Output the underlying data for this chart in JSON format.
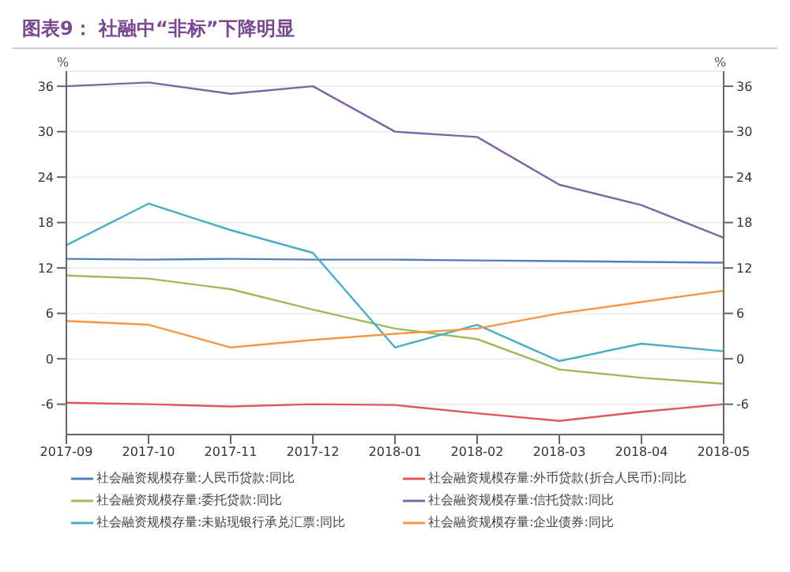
{
  "chart_data": {
    "type": "line",
    "title": "图表9：  社融中“非标”下降明显",
    "ylabel": "%",
    "y2label": "%",
    "categories": [
      "2017-09",
      "2017-10",
      "2017-11",
      "2017-12",
      "2018-01",
      "2018-02",
      "2018-03",
      "2018-04",
      "2018-05"
    ],
    "series": [
      {
        "name": "社会融资规模存量:人民币贷款:同比",
        "color": "#4f81bd",
        "values": [
          13.2,
          13.1,
          13.2,
          13.1,
          13.1,
          13.0,
          12.9,
          12.8,
          12.7
        ]
      },
      {
        "name": "社会融资规模存量:外币贷款(折合人民币):同比",
        "color": "#e0565b",
        "values": [
          -5.8,
          -6.0,
          -6.3,
          -6.0,
          -6.1,
          -7.2,
          -8.2,
          -7.0,
          -6.0
        ]
      },
      {
        "name": "社会融资规模存量:委托贷款:同比",
        "color": "#9bbb59",
        "values": [
          11.0,
          10.6,
          9.2,
          6.5,
          4.0,
          2.6,
          -1.4,
          -2.5,
          -3.3
        ]
      },
      {
        "name": "社会融资规模存量:信托贷款:同比",
        "color": "#8064a2",
        "values": [
          36.0,
          36.5,
          35.0,
          36.0,
          30.0,
          29.3,
          23.0,
          20.3,
          16.0
        ]
      },
      {
        "name": "社会融资规模存量:未贴现银行承兑汇票:同比",
        "color": "#4bacc6",
        "values": [
          15.0,
          20.5,
          17.0,
          14.0,
          1.5,
          4.5,
          -0.3,
          2.0,
          1.0
        ]
      },
      {
        "name": "社会融资规模存量:企业债券:同比",
        "color": "#f79646",
        "values": [
          5.0,
          4.5,
          1.5,
          2.5,
          3.3,
          4.0,
          6.0,
          7.5,
          9.0
        ]
      }
    ],
    "ylim": [
      -10,
      38
    ],
    "yticks": [
      -6,
      0,
      6,
      12,
      18,
      24,
      30,
      36
    ],
    "y2lim": [
      -10,
      38
    ],
    "y2ticks": [
      -6,
      0,
      6,
      12,
      18,
      24,
      30,
      36
    ],
    "grid": "y",
    "legend": "bottom",
    "marker": "none",
    "line_style": "solid"
  }
}
